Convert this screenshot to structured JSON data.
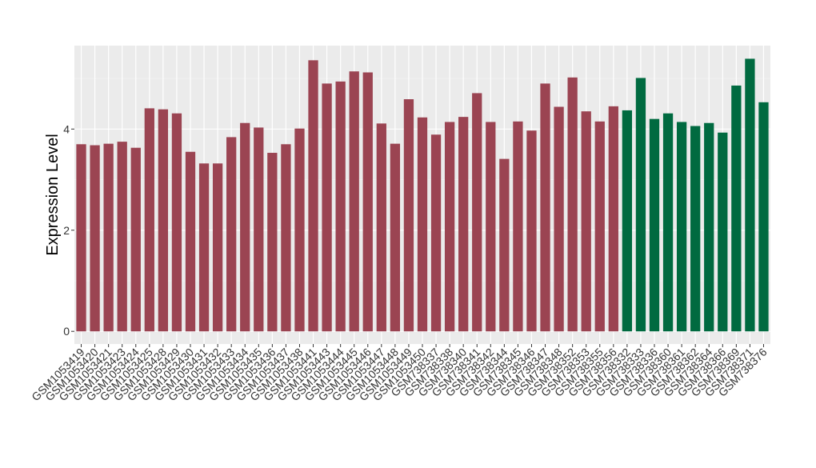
{
  "chart_data": {
    "type": "bar",
    "ylabel": "Expression Level",
    "xlabel": "",
    "ylim": [
      -0.25,
      5.65
    ],
    "yticks": [
      0,
      2,
      4
    ],
    "grid": true,
    "legend": "none",
    "colors": {
      "group1": "#9b4452",
      "group2": "#006a40",
      "panel": "#ebebeb",
      "gridline": "#ffffff"
    },
    "categories": [
      "GSM1053419",
      "GSM1053420",
      "GSM1053421",
      "GSM1053423",
      "GSM1053424",
      "GSM1053425",
      "GSM1053428",
      "GSM1053429",
      "GSM1053430",
      "GSM1053431",
      "GSM1053432",
      "GSM1053433",
      "GSM1053434",
      "GSM1053435",
      "GSM1053436",
      "GSM1053437",
      "GSM1053438",
      "GSM1053441",
      "GSM1053443",
      "GSM1053444",
      "GSM1053445",
      "GSM1053446",
      "GSM1053447",
      "GSM1053448",
      "GSM1053449",
      "GSM1053450",
      "GSM738337",
      "GSM738338",
      "GSM738340",
      "GSM738341",
      "GSM738342",
      "GSM738344",
      "GSM738345",
      "GSM738346",
      "GSM738347",
      "GSM738348",
      "GSM738352",
      "GSM738353",
      "GSM738355",
      "GSM738356",
      "GSM738332",
      "GSM738333",
      "GSM738336",
      "GSM738360",
      "GSM738361",
      "GSM738362",
      "GSM738364",
      "GSM738366",
      "GSM738369",
      "GSM738371",
      "GSM738376"
    ],
    "values": [
      3.7,
      3.68,
      3.71,
      3.75,
      3.63,
      4.41,
      4.39,
      4.31,
      3.55,
      3.32,
      3.32,
      3.84,
      4.12,
      4.03,
      3.53,
      3.7,
      4.01,
      5.36,
      4.9,
      4.94,
      5.14,
      5.12,
      4.11,
      3.71,
      4.59,
      4.23,
      3.89,
      4.14,
      4.24,
      4.71,
      4.14,
      3.41,
      4.15,
      3.97,
      4.9,
      4.44,
      5.02,
      4.35,
      4.15,
      4.45,
      4.37,
      5.01,
      4.2,
      4.31,
      4.14,
      4.06,
      4.12,
      3.93,
      4.86,
      5.39,
      4.53
    ],
    "groups": [
      "group1",
      "group1",
      "group1",
      "group1",
      "group1",
      "group1",
      "group1",
      "group1",
      "group1",
      "group1",
      "group1",
      "group1",
      "group1",
      "group1",
      "group1",
      "group1",
      "group1",
      "group1",
      "group1",
      "group1",
      "group1",
      "group1",
      "group1",
      "group1",
      "group1",
      "group1",
      "group1",
      "group1",
      "group1",
      "group1",
      "group1",
      "group1",
      "group1",
      "group1",
      "group1",
      "group1",
      "group1",
      "group1",
      "group1",
      "group1",
      "group2",
      "group2",
      "group2",
      "group2",
      "group2",
      "group2",
      "group2",
      "group2",
      "group2",
      "group2",
      "group2"
    ]
  }
}
